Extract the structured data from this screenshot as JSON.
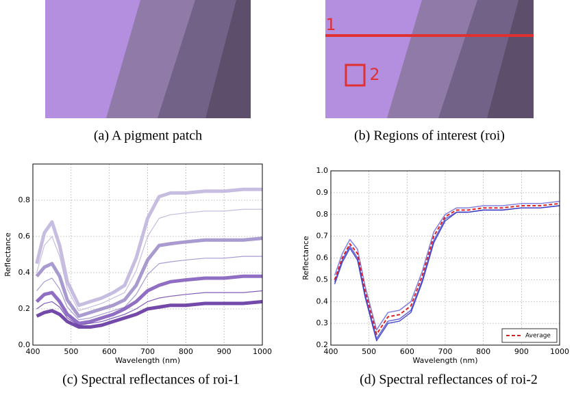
{
  "figures": [
    {
      "caption": "(a) A pigment patch"
    },
    {
      "caption": "(b) Regions of interest (roi)",
      "roi_labels": [
        "1",
        "2"
      ]
    }
  ],
  "chart_data": [
    {
      "type": "line",
      "caption": "(c) Spectral reflectances of roi-1",
      "xlabel": "Wavelength (nm)",
      "ylabel": "Reflectance",
      "xlim": [
        400,
        1000
      ],
      "ylim": [
        0,
        1.0
      ],
      "xticks": [
        400,
        500,
        600,
        700,
        800,
        900,
        1000
      ],
      "yticks": [
        {
          "value": 0,
          "label": "0.0"
        },
        0.2,
        0.4,
        0.6,
        0.8
      ],
      "grid": true,
      "x": [
        410,
        430,
        450,
        470,
        490,
        520,
        550,
        580,
        610,
        640,
        670,
        700,
        730,
        760,
        800,
        850,
        900,
        950,
        1000
      ],
      "series": [
        {
          "color": "#bdb2da",
          "width": 5,
          "values": [
            0.45,
            0.62,
            0.68,
            0.55,
            0.35,
            0.22,
            0.24,
            0.26,
            0.29,
            0.33,
            0.48,
            0.7,
            0.82,
            0.84,
            0.84,
            0.85,
            0.85,
            0.86,
            0.86
          ]
        },
        {
          "color": "#bdb2da",
          "width": 1.2,
          "values": [
            0.4,
            0.55,
            0.6,
            0.49,
            0.31,
            0.19,
            0.21,
            0.23,
            0.26,
            0.29,
            0.41,
            0.6,
            0.7,
            0.72,
            0.73,
            0.74,
            0.74,
            0.75,
            0.75
          ]
        },
        {
          "color": "#9a88c8",
          "width": 5,
          "values": [
            0.38,
            0.43,
            0.45,
            0.38,
            0.25,
            0.16,
            0.18,
            0.2,
            0.22,
            0.25,
            0.33,
            0.47,
            0.55,
            0.56,
            0.57,
            0.58,
            0.58,
            0.58,
            0.59
          ]
        },
        {
          "color": "#9a88c8",
          "width": 1.2,
          "values": [
            0.3,
            0.35,
            0.37,
            0.31,
            0.21,
            0.14,
            0.15,
            0.17,
            0.19,
            0.21,
            0.28,
            0.39,
            0.45,
            0.46,
            0.47,
            0.48,
            0.48,
            0.49,
            0.49
          ]
        },
        {
          "color": "#7b55b8",
          "width": 5,
          "values": [
            0.24,
            0.28,
            0.29,
            0.24,
            0.17,
            0.12,
            0.13,
            0.15,
            0.17,
            0.2,
            0.24,
            0.3,
            0.33,
            0.35,
            0.36,
            0.37,
            0.37,
            0.38,
            0.38
          ]
        },
        {
          "color": "#6a3fac",
          "width": 1.2,
          "values": [
            0.2,
            0.23,
            0.24,
            0.21,
            0.15,
            0.11,
            0.12,
            0.13,
            0.15,
            0.17,
            0.2,
            0.24,
            0.26,
            0.27,
            0.28,
            0.29,
            0.29,
            0.29,
            0.3
          ]
        },
        {
          "color": "#5b2a9a",
          "width": 5,
          "values": [
            0.16,
            0.18,
            0.19,
            0.17,
            0.13,
            0.1,
            0.1,
            0.11,
            0.13,
            0.15,
            0.17,
            0.2,
            0.21,
            0.22,
            0.22,
            0.23,
            0.23,
            0.23,
            0.24
          ]
        }
      ]
    },
    {
      "type": "line",
      "caption": "(d) Spectral reflectances of roi-2",
      "xlabel": "Wavelength (nm)",
      "ylabel": "Reflectance",
      "xlim": [
        400,
        1000
      ],
      "ylim": [
        0.2,
        1.0
      ],
      "xticks": [
        400,
        500,
        600,
        700,
        800,
        900,
        1000
      ],
      "yticks": [
        0.2,
        0.3,
        0.4,
        0.5,
        0.6,
        0.7,
        0.8,
        0.9,
        {
          "value": 1,
          "label": "1.0"
        }
      ],
      "grid": true,
      "legend": "lower right",
      "x": [
        410,
        430,
        450,
        470,
        490,
        520,
        550,
        580,
        610,
        640,
        670,
        700,
        730,
        760,
        800,
        850,
        900,
        950,
        1000
      ],
      "series": [
        {
          "color": "#6a6ad8",
          "width": 1.5,
          "values": [
            0.52,
            0.62,
            0.685,
            0.64,
            0.47,
            0.27,
            0.35,
            0.36,
            0.4,
            0.54,
            0.72,
            0.8,
            0.83,
            0.83,
            0.84,
            0.84,
            0.85,
            0.85,
            0.86
          ]
        },
        {
          "color": "#4a4ad0",
          "width": 1.5,
          "values": [
            0.49,
            0.59,
            0.655,
            0.6,
            0.43,
            0.23,
            0.31,
            0.32,
            0.36,
            0.5,
            0.68,
            0.78,
            0.81,
            0.81,
            0.82,
            0.82,
            0.83,
            0.83,
            0.84
          ]
        },
        {
          "color": "#3030c0",
          "width": 1.5,
          "values": [
            0.48,
            0.58,
            0.645,
            0.59,
            0.42,
            0.22,
            0.3,
            0.31,
            0.35,
            0.49,
            0.67,
            0.77,
            0.81,
            0.81,
            0.82,
            0.82,
            0.83,
            0.83,
            0.84
          ]
        },
        {
          "name": "Average",
          "color": "#e02020",
          "width": 2,
          "dashed": true,
          "values": [
            0.5,
            0.6,
            0.665,
            0.62,
            0.45,
            0.25,
            0.33,
            0.34,
            0.38,
            0.52,
            0.7,
            0.79,
            0.82,
            0.82,
            0.83,
            0.83,
            0.84,
            0.84,
            0.85
          ]
        }
      ]
    }
  ]
}
